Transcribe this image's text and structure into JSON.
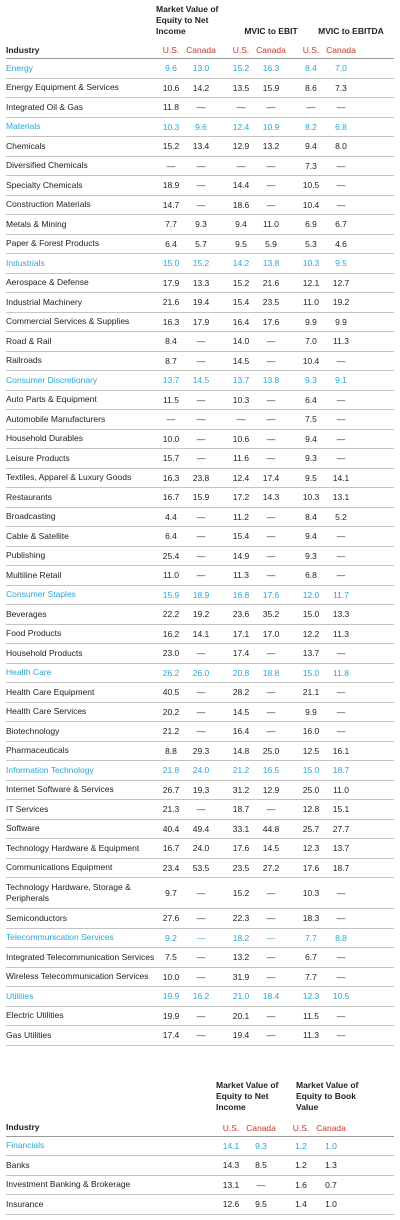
{
  "table1": {
    "headers": {
      "mv": "Market Value of Equity to Net Income",
      "ebit": "MVIC to EBIT",
      "ebitda": "MVIC to EBITDA",
      "industry": "Industry",
      "us": "U.S.",
      "canada": "Canada"
    },
    "rows": [
      {
        "name": "Energy",
        "sector": true,
        "v": [
          "9.6",
          "13.0",
          "15.2",
          "16.3",
          "8.4",
          "7.0"
        ]
      },
      {
        "name": "Energy Equipment & Services",
        "v": [
          "10.6",
          "14.2",
          "13.5",
          "15.9",
          "8.6",
          "7.3"
        ]
      },
      {
        "name": "Integrated Oil & Gas",
        "v": [
          "11.8",
          "—",
          "—",
          "—",
          "—",
          "—"
        ]
      },
      {
        "name": "Materials",
        "sector": true,
        "v": [
          "10.3",
          "9.6",
          "12.4",
          "10.9",
          "8.2",
          "6.8"
        ]
      },
      {
        "name": "Chemicals",
        "v": [
          "15.2",
          "13.4",
          "12.9",
          "13.2",
          "9.4",
          "8.0"
        ]
      },
      {
        "name": "Diversified Chemicals",
        "v": [
          "—",
          "—",
          "—",
          "—",
          "7.3",
          "—"
        ]
      },
      {
        "name": "Specialty Chemicals",
        "v": [
          "18.9",
          "—",
          "14.4",
          "—",
          "10.5",
          "—"
        ]
      },
      {
        "name": "Construction Materials",
        "v": [
          "14.7",
          "—",
          "18.6",
          "—",
          "10.4",
          "—"
        ]
      },
      {
        "name": "Metals & Mining",
        "v": [
          "7.7",
          "9.3",
          "9.4",
          "11.0",
          "6.9",
          "6.7"
        ]
      },
      {
        "name": "Paper & Forest Products",
        "v": [
          "6.4",
          "5.7",
          "9.5",
          "5.9",
          "5.3",
          "4.6"
        ]
      },
      {
        "name": "Industrials",
        "sector": true,
        "v": [
          "15.0",
          "15.2",
          "14.2",
          "13.8",
          "10.3",
          "9.5"
        ]
      },
      {
        "name": "Aerospace & Defense",
        "v": [
          "17.9",
          "13.3",
          "15.2",
          "21.6",
          "12.1",
          "12.7"
        ]
      },
      {
        "name": "Industrial Machinery",
        "v": [
          "21.6",
          "19.4",
          "15.4",
          "23.5",
          "11.0",
          "19.2"
        ]
      },
      {
        "name": "Commercial Services & Supplies",
        "v": [
          "16.3",
          "17.9",
          "16.4",
          "17.6",
          "9.9",
          "9.9"
        ]
      },
      {
        "name": "Road & Rail",
        "v": [
          "8.4",
          "—",
          "14.0",
          "—",
          "7.0",
          "11.3"
        ]
      },
      {
        "name": "Railroads",
        "v": [
          "8.7",
          "—",
          "14.5",
          "—",
          "10.4",
          "—"
        ]
      },
      {
        "name": "Consumer Discretionary",
        "sector": true,
        "v": [
          "13.7",
          "14.5",
          "13.7",
          "13.8",
          "9.3",
          "9.1"
        ]
      },
      {
        "name": "Auto Parts & Equipment",
        "v": [
          "11.5",
          "—",
          "10.3",
          "—",
          "6.4",
          "—"
        ]
      },
      {
        "name": "Automobile Manufacturers",
        "v": [
          "—",
          "—",
          "—",
          "—",
          "7.5",
          "—"
        ]
      },
      {
        "name": "Household Durables",
        "v": [
          "10.0",
          "—",
          "10.6",
          "—",
          "9.4",
          "—"
        ]
      },
      {
        "name": "Leisure Products",
        "v": [
          "15.7",
          "—",
          "11.6",
          "—",
          "9.3",
          "—"
        ]
      },
      {
        "name": "Textiles, Apparel & Luxury Goods",
        "v": [
          "16.3",
          "23.8",
          "12.4",
          "17.4",
          "9.5",
          "14.1"
        ]
      },
      {
        "name": "Restaurants",
        "v": [
          "16.7",
          "15.9",
          "17.2",
          "14.3",
          "10.3",
          "13.1"
        ]
      },
      {
        "name": "Broadcasting",
        "v": [
          "4.4",
          "—",
          "11.2",
          "—",
          "8.4",
          "5.2"
        ]
      },
      {
        "name": "Cable & Satellite",
        "v": [
          "6.4",
          "—",
          "15.4",
          "—",
          "9.4",
          "—"
        ]
      },
      {
        "name": "Publishing",
        "v": [
          "25.4",
          "—",
          "14.9",
          "—",
          "9.3",
          "—"
        ]
      },
      {
        "name": "Multiline Retail",
        "v": [
          "11.0",
          "—",
          "11.3",
          "—",
          "6.8",
          "—"
        ]
      },
      {
        "name": "Consumer Staples",
        "sector": true,
        "v": [
          "15.9",
          "18.9",
          "16.8",
          "17.6",
          "12.0",
          "11.7"
        ]
      },
      {
        "name": "Beverages",
        "v": [
          "22.2",
          "19.2",
          "23.6",
          "35.2",
          "15.0",
          "13.3"
        ]
      },
      {
        "name": "Food Products",
        "v": [
          "16.2",
          "14.1",
          "17.1",
          "17.0",
          "12.2",
          "11.3"
        ]
      },
      {
        "name": "Household Products",
        "v": [
          "23.0",
          "—",
          "17.4",
          "—",
          "13.7",
          "—"
        ]
      },
      {
        "name": "Health Care",
        "sector": true,
        "v": [
          "26.2",
          "26.0",
          "20.8",
          "18.8",
          "15.0",
          "11.8"
        ]
      },
      {
        "name": "Health Care Equipment",
        "v": [
          "40.5",
          "—",
          "28.2",
          "—",
          "21.1",
          "—"
        ]
      },
      {
        "name": "Health Care Services",
        "v": [
          "20.2",
          "—",
          "14.5",
          "—",
          "9.9",
          "—"
        ]
      },
      {
        "name": "Biotechnology",
        "v": [
          "21.2",
          "—",
          "16.4",
          "—",
          "16.0",
          "—"
        ]
      },
      {
        "name": "Pharmaceuticals",
        "v": [
          "8.8",
          "29.3",
          "14.8",
          "25.0",
          "12.5",
          "16.1"
        ]
      },
      {
        "name": "Information Technology",
        "sector": true,
        "v": [
          "21.8",
          "24.0",
          "21.2",
          "16.5",
          "15.0",
          "18.7"
        ]
      },
      {
        "name": "Internet Software & Services",
        "v": [
          "26.7",
          "19.3",
          "31.2",
          "12.9",
          "25.0",
          "11.0"
        ]
      },
      {
        "name": "IT Services",
        "v": [
          "21.3",
          "—",
          "18.7",
          "—",
          "12.8",
          "15.1"
        ]
      },
      {
        "name": "Software",
        "v": [
          "40.4",
          "49.4",
          "33.1",
          "44.8",
          "25.7",
          "27.7"
        ]
      },
      {
        "name": "Technology Hardware & Equipment",
        "v": [
          "16.7",
          "24.0",
          "17.6",
          "14.5",
          "12.3",
          "13.7"
        ]
      },
      {
        "name": "Communications Equipment",
        "v": [
          "23.4",
          "53.5",
          "23.5",
          "27.2",
          "17.6",
          "18.7"
        ]
      },
      {
        "name": "Technology Hardware, Storage & Peripherals",
        "tall": true,
        "v": [
          "9.7",
          "—",
          "15.2",
          "—",
          "10.3",
          "—"
        ]
      },
      {
        "name": "Semiconductors",
        "v": [
          "27.6",
          "—",
          "22.3",
          "—",
          "18.3",
          "—"
        ]
      },
      {
        "name": "Telecommunication Services",
        "sector": true,
        "v": [
          "9.2",
          "—",
          "18.2",
          "—",
          "7.7",
          "8.8"
        ]
      },
      {
        "name": "Integrated Telecommunication Services",
        "v": [
          "7.5",
          "—",
          "13.2",
          "—",
          "6.7",
          "—"
        ]
      },
      {
        "name": "Wireless Telecommunication Services",
        "v": [
          "10.0",
          "—",
          "31.9",
          "—",
          "7.7",
          "—"
        ]
      },
      {
        "name": "Utilities",
        "sector": true,
        "v": [
          "19.9",
          "16.2",
          "21.0",
          "18.4",
          "12.3",
          "10.5"
        ]
      },
      {
        "name": "Electric Utilities",
        "v": [
          "19.9",
          "—",
          "20.1",
          "—",
          "11.5",
          "—"
        ]
      },
      {
        "name": "Gas Utilities",
        "v": [
          "17.4",
          "—",
          "19.4",
          "—",
          "11.3",
          "—"
        ]
      }
    ]
  },
  "table2": {
    "headers": {
      "mv": "Market Value of Equity to Net Income",
      "bv": "Market Value of Equity to Book Value",
      "industry": "Industry",
      "us": "U.S.",
      "canada": "Canada"
    },
    "rows": [
      {
        "name": "Financials",
        "sector": true,
        "v": [
          "14.1",
          "9.3",
          "1.2",
          "1.0"
        ]
      },
      {
        "name": "Banks",
        "v": [
          "14.3",
          "8.5",
          "1.2",
          "1.3"
        ]
      },
      {
        "name": "Investment Banking & Brokerage",
        "v": [
          "13.1",
          "—",
          "1.6",
          "0.7"
        ]
      },
      {
        "name": "Insurance",
        "v": [
          "12.6",
          "9.5",
          "1.4",
          "1.0"
        ]
      }
    ]
  }
}
